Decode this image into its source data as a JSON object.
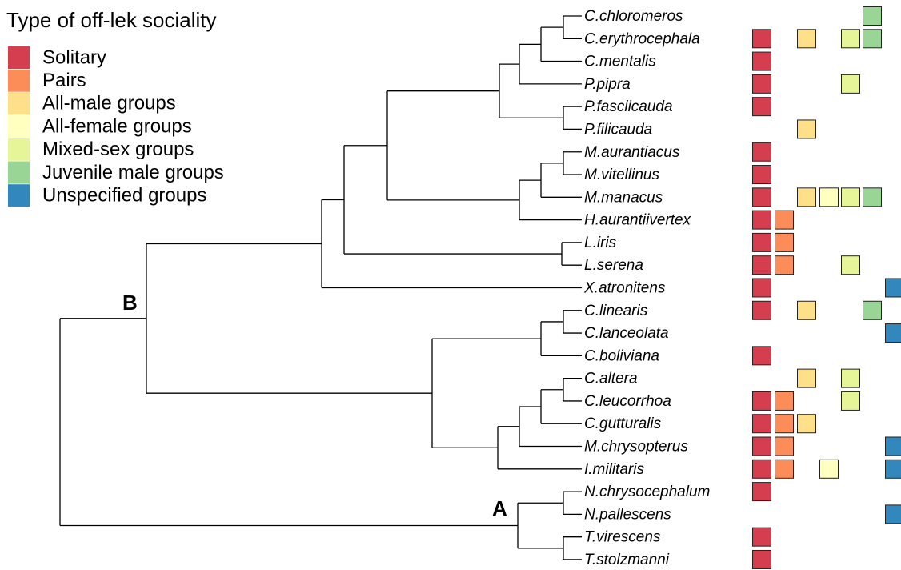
{
  "legend": {
    "title": "Type of off-lek sociality",
    "items": [
      {
        "label": "Solitary",
        "color": "#d53e4f"
      },
      {
        "label": "Pairs",
        "color": "#fc8d59"
      },
      {
        "label": "All-male groups",
        "color": "#fee08b"
      },
      {
        "label": "All-female groups",
        "color": "#ffffbf"
      },
      {
        "label": "Mixed-sex groups",
        "color": "#e6f598"
      },
      {
        "label": "Juvenile male groups",
        "color": "#99d594"
      },
      {
        "label": "Unspecified groups",
        "color": "#3288bd"
      }
    ]
  },
  "node_labels": {
    "A": "A",
    "B": "B"
  },
  "taxa": [
    {
      "name": "C.chloromeros",
      "traits": [
        5
      ]
    },
    {
      "name": "C.erythrocephala",
      "traits": [
        0,
        2,
        4,
        5
      ]
    },
    {
      "name": "C.mentalis",
      "traits": [
        0
      ]
    },
    {
      "name": "P.pipra",
      "traits": [
        0,
        4
      ]
    },
    {
      "name": "P.fasciicauda",
      "traits": [
        0
      ]
    },
    {
      "name": "P.filicauda",
      "traits": [
        2
      ]
    },
    {
      "name": "M.aurantiacus",
      "traits": [
        0
      ]
    },
    {
      "name": "M.vitellinus",
      "traits": [
        0
      ]
    },
    {
      "name": "M.manacus",
      "traits": [
        0,
        2,
        3,
        4,
        5
      ]
    },
    {
      "name": "H.aurantiivertex",
      "traits": [
        0,
        1
      ]
    },
    {
      "name": "L.iris",
      "traits": [
        0,
        1
      ]
    },
    {
      "name": "L.serena",
      "traits": [
        0,
        1,
        4
      ]
    },
    {
      "name": "X.atronitens",
      "traits": [
        0,
        6
      ]
    },
    {
      "name": "C.linearis",
      "traits": [
        0,
        2,
        5
      ]
    },
    {
      "name": "C.lanceolata",
      "traits": [
        6
      ]
    },
    {
      "name": "C.boliviana",
      "traits": [
        0
      ]
    },
    {
      "name": "C.altera",
      "traits": [
        2,
        4
      ]
    },
    {
      "name": "C.leucorrhoa",
      "traits": [
        0,
        1,
        4
      ]
    },
    {
      "name": "C.gutturalis",
      "traits": [
        0,
        1,
        2
      ]
    },
    {
      "name": "M.chrysopterus",
      "traits": [
        0,
        1,
        6
      ]
    },
    {
      "name": "I.militaris",
      "traits": [
        0,
        1,
        3,
        6
      ]
    },
    {
      "name": "N.chrysocephalum",
      "traits": [
        0
      ]
    },
    {
      "name": "N.pallescens",
      "traits": [
        6
      ]
    },
    {
      "name": "T.virescens",
      "traits": [
        0
      ]
    },
    {
      "name": "T.stolzmanni",
      "traits": [
        0
      ]
    }
  ]
}
